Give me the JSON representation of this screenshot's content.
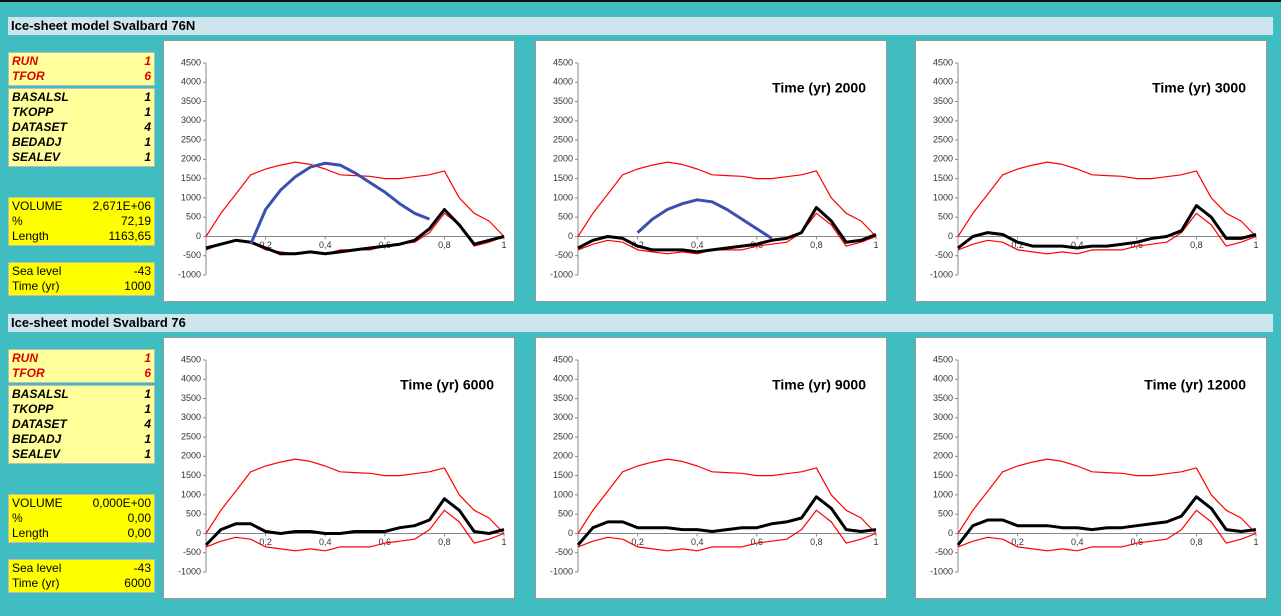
{
  "panels": [
    {
      "title": "Ice-sheet model Svalbard 76N",
      "groups": [
        [
          [
            "RUN",
            "1"
          ],
          [
            "TFOR",
            "6"
          ]
        ],
        [
          [
            "BASALSL",
            "1"
          ],
          [
            "TKOPP",
            "1"
          ],
          [
            "DATASET",
            "4"
          ],
          [
            "BEDADJ",
            "1"
          ],
          [
            "SEALEV",
            "1"
          ]
        ],
        [
          [
            "VOLUME",
            "2,671E+06"
          ],
          [
            "%",
            "72,19"
          ],
          [
            "Length",
            "1163,65"
          ]
        ],
        [
          [
            "Sea level",
            "-43"
          ],
          [
            "Time (yr)",
            "1000"
          ]
        ]
      ]
    },
    {
      "title": "Ice-sheet model Svalbard 76",
      "groups": [
        [
          [
            "RUN",
            "1"
          ],
          [
            "TFOR",
            "6"
          ]
        ],
        [
          [
            "BASALSL",
            "1"
          ],
          [
            "TKOPP",
            "1"
          ],
          [
            "DATASET",
            "4"
          ],
          [
            "BEDADJ",
            "1"
          ],
          [
            "SEALEV",
            "1"
          ]
        ],
        [
          [
            "VOLUME",
            "0,000E+00"
          ],
          [
            "%",
            "0,00"
          ],
          [
            "Length",
            "0,00"
          ]
        ],
        [
          [
            "Sea level",
            "-43"
          ],
          [
            "Time (yr)",
            "6000"
          ]
        ]
      ]
    }
  ],
  "chart_data": [
    {
      "type": "line",
      "xlim": [
        0,
        1
      ],
      "ylim": [
        -1000,
        4500
      ],
      "xticks": [
        {
          "value": 0.2,
          "label": "0,2"
        },
        {
          "value": 0.4,
          "label": "0,4"
        },
        {
          "value": 0.6,
          "label": "0,6"
        },
        {
          "value": 0.8,
          "label": "0,8"
        },
        1
      ],
      "yticks": [
        -1000,
        -500,
        0,
        500,
        1000,
        1500,
        2000,
        2500,
        3000,
        3500,
        4000,
        4500
      ],
      "x": [
        0,
        0.05,
        0.1,
        0.15,
        0.2,
        0.25,
        0.3,
        0.35,
        0.4,
        0.45,
        0.5,
        0.55,
        0.6,
        0.65,
        0.7,
        0.75,
        0.8,
        0.85,
        0.9,
        0.95,
        1
      ],
      "series": [
        {
          "color": "#ff0000",
          "values": [
            0,
            600,
            1100,
            1600,
            1750,
            1850,
            1930,
            1870,
            1750,
            1600,
            1580,
            1560,
            1500,
            1500,
            1550,
            1600,
            1700,
            1000,
            600,
            400,
            0
          ]
        },
        {
          "color": "#ff0000",
          "values": [
            -350,
            -200,
            -100,
            -150,
            -350,
            -400,
            -450,
            -400,
            -450,
            -350,
            -350,
            -350,
            -250,
            -200,
            -150,
            100,
            600,
            300,
            -250,
            -150,
            0
          ]
        },
        {
          "color": "#000000",
          "values": [
            -300,
            -200,
            -100,
            -150,
            -300,
            -450,
            -450,
            -400,
            -450,
            -400,
            -350,
            -300,
            -250,
            -200,
            -100,
            200,
            700,
            300,
            -200,
            -100,
            0
          ]
        },
        {
          "color": "#3a4fb0",
          "values": [
            null,
            null,
            null,
            -200,
            700,
            1200,
            1550,
            1800,
            1900,
            1850,
            1650,
            1400,
            1150,
            850,
            600,
            450,
            null,
            null,
            null,
            null,
            null
          ]
        }
      ]
    },
    {
      "type": "line",
      "xlim": [
        0,
        1
      ],
      "ylim": [
        -1000,
        4500
      ],
      "annotation": "Time (yr) 2000",
      "xticks": [
        {
          "value": 0.2,
          "label": "0,2"
        },
        {
          "value": 0.4,
          "label": "0,4"
        },
        {
          "value": 0.6,
          "label": "0,6"
        },
        {
          "value": 0.8,
          "label": "0,8"
        },
        1
      ],
      "yticks": [
        -1000,
        -500,
        0,
        500,
        1000,
        1500,
        2000,
        2500,
        3000,
        3500,
        4000,
        4500
      ],
      "x": [
        0,
        0.05,
        0.1,
        0.15,
        0.2,
        0.25,
        0.3,
        0.35,
        0.4,
        0.45,
        0.5,
        0.55,
        0.6,
        0.65,
        0.7,
        0.75,
        0.8,
        0.85,
        0.9,
        0.95,
        1
      ],
      "series": [
        {
          "color": "#ff0000",
          "values": [
            0,
            600,
            1100,
            1600,
            1750,
            1850,
            1930,
            1870,
            1750,
            1600,
            1580,
            1560,
            1500,
            1500,
            1550,
            1600,
            1700,
            1000,
            600,
            400,
            0
          ]
        },
        {
          "color": "#ff0000",
          "values": [
            -350,
            -200,
            -100,
            -150,
            -350,
            -400,
            -450,
            -400,
            -450,
            -350,
            -350,
            -350,
            -250,
            -200,
            -150,
            100,
            600,
            300,
            -250,
            -150,
            0
          ]
        },
        {
          "color": "#000000",
          "values": [
            -300,
            -100,
            0,
            -50,
            -250,
            -350,
            -350,
            -350,
            -400,
            -350,
            -300,
            -250,
            -200,
            -100,
            -50,
            100,
            750,
            400,
            -150,
            -100,
            50
          ]
        },
        {
          "color": "#3a4fb0",
          "values": [
            null,
            null,
            null,
            null,
            100,
            450,
            700,
            850,
            950,
            900,
            700,
            450,
            200,
            -50,
            null,
            null,
            null,
            null,
            null,
            null,
            null
          ]
        }
      ]
    },
    {
      "type": "line",
      "xlim": [
        0,
        1
      ],
      "ylim": [
        -1000,
        4500
      ],
      "annotation": "Time (yr) 3000",
      "xticks": [
        {
          "value": 0.2,
          "label": "0,2"
        },
        {
          "value": 0.4,
          "label": "0,4"
        },
        {
          "value": 0.6,
          "label": "0,6"
        },
        {
          "value": 0.8,
          "label": "0,8"
        },
        1
      ],
      "yticks": [
        -1000,
        -500,
        0,
        500,
        1000,
        1500,
        2000,
        2500,
        3000,
        3500,
        4000,
        4500
      ],
      "x": [
        0,
        0.05,
        0.1,
        0.15,
        0.2,
        0.25,
        0.3,
        0.35,
        0.4,
        0.45,
        0.5,
        0.55,
        0.6,
        0.65,
        0.7,
        0.75,
        0.8,
        0.85,
        0.9,
        0.95,
        1
      ],
      "series": [
        {
          "color": "#ff0000",
          "values": [
            0,
            600,
            1100,
            1600,
            1750,
            1850,
            1930,
            1870,
            1750,
            1600,
            1580,
            1560,
            1500,
            1500,
            1550,
            1600,
            1700,
            1000,
            600,
            400,
            0
          ]
        },
        {
          "color": "#ff0000",
          "values": [
            -350,
            -200,
            -100,
            -150,
            -350,
            -400,
            -450,
            -400,
            -450,
            -350,
            -350,
            -350,
            -250,
            -200,
            -150,
            100,
            600,
            300,
            -250,
            -150,
            0
          ]
        },
        {
          "color": "#000000",
          "values": [
            -300,
            0,
            100,
            50,
            -150,
            -250,
            -250,
            -250,
            -300,
            -250,
            -250,
            -200,
            -150,
            -50,
            0,
            150,
            800,
            500,
            -50,
            -50,
            50
          ]
        }
      ]
    },
    {
      "type": "line",
      "xlim": [
        0,
        1
      ],
      "ylim": [
        -1000,
        4500
      ],
      "annotation": "Time (yr) 6000",
      "xticks": [
        {
          "value": 0.2,
          "label": "0,2"
        },
        {
          "value": 0.4,
          "label": "0,4"
        },
        {
          "value": 0.6,
          "label": "0,6"
        },
        {
          "value": 0.8,
          "label": "0,8"
        },
        1
      ],
      "yticks": [
        -1000,
        -500,
        0,
        500,
        1000,
        1500,
        2000,
        2500,
        3000,
        3500,
        4000,
        4500
      ],
      "x": [
        0,
        0.05,
        0.1,
        0.15,
        0.2,
        0.25,
        0.3,
        0.35,
        0.4,
        0.45,
        0.5,
        0.55,
        0.6,
        0.65,
        0.7,
        0.75,
        0.8,
        0.85,
        0.9,
        0.95,
        1
      ],
      "series": [
        {
          "color": "#ff0000",
          "values": [
            0,
            600,
            1100,
            1600,
            1750,
            1850,
            1930,
            1870,
            1750,
            1600,
            1580,
            1560,
            1500,
            1500,
            1550,
            1600,
            1700,
            1000,
            600,
            400,
            0
          ]
        },
        {
          "color": "#ff0000",
          "values": [
            -350,
            -200,
            -100,
            -150,
            -350,
            -400,
            -450,
            -400,
            -450,
            -350,
            -350,
            -350,
            -250,
            -200,
            -150,
            100,
            600,
            300,
            -250,
            -150,
            0
          ]
        },
        {
          "color": "#000000",
          "values": [
            -300,
            100,
            250,
            250,
            50,
            0,
            50,
            50,
            0,
            0,
            50,
            50,
            50,
            150,
            200,
            350,
            900,
            600,
            50,
            0,
            100
          ]
        }
      ]
    },
    {
      "type": "line",
      "xlim": [
        0,
        1
      ],
      "ylim": [
        -1000,
        4500
      ],
      "annotation": "Time (yr) 9000",
      "xticks": [
        {
          "value": 0.2,
          "label": "0,2"
        },
        {
          "value": 0.4,
          "label": "0,4"
        },
        {
          "value": 0.6,
          "label": "0,6"
        },
        {
          "value": 0.8,
          "label": "0,8"
        },
        1
      ],
      "yticks": [
        -1000,
        -500,
        0,
        500,
        1000,
        1500,
        2000,
        2500,
        3000,
        3500,
        4000,
        4500
      ],
      "x": [
        0,
        0.05,
        0.1,
        0.15,
        0.2,
        0.25,
        0.3,
        0.35,
        0.4,
        0.45,
        0.5,
        0.55,
        0.6,
        0.65,
        0.7,
        0.75,
        0.8,
        0.85,
        0.9,
        0.95,
        1
      ],
      "series": [
        {
          "color": "#ff0000",
          "values": [
            0,
            600,
            1100,
            1600,
            1750,
            1850,
            1930,
            1870,
            1750,
            1600,
            1580,
            1560,
            1500,
            1500,
            1550,
            1600,
            1700,
            1000,
            600,
            400,
            0
          ]
        },
        {
          "color": "#ff0000",
          "values": [
            -350,
            -200,
            -100,
            -150,
            -350,
            -400,
            -450,
            -400,
            -450,
            -350,
            -350,
            -350,
            -250,
            -200,
            -150,
            100,
            600,
            300,
            -250,
            -150,
            0
          ]
        },
        {
          "color": "#000000",
          "values": [
            -300,
            150,
            300,
            300,
            150,
            150,
            150,
            100,
            100,
            50,
            100,
            150,
            150,
            250,
            300,
            400,
            950,
            650,
            100,
            50,
            100
          ]
        }
      ]
    },
    {
      "type": "line",
      "xlim": [
        0,
        1
      ],
      "ylim": [
        -1000,
        4500
      ],
      "annotation": "Time (yr) 12000",
      "xticks": [
        {
          "value": 0.2,
          "label": "0,2"
        },
        {
          "value": 0.4,
          "label": "0,4"
        },
        {
          "value": 0.6,
          "label": "0,6"
        },
        {
          "value": 0.8,
          "label": "0,8"
        },
        1
      ],
      "yticks": [
        -1000,
        -500,
        0,
        500,
        1000,
        1500,
        2000,
        2500,
        3000,
        3500,
        4000,
        4500
      ],
      "x": [
        0,
        0.05,
        0.1,
        0.15,
        0.2,
        0.25,
        0.3,
        0.35,
        0.4,
        0.45,
        0.5,
        0.55,
        0.6,
        0.65,
        0.7,
        0.75,
        0.8,
        0.85,
        0.9,
        0.95,
        1
      ],
      "series": [
        {
          "color": "#ff0000",
          "values": [
            0,
            600,
            1100,
            1600,
            1750,
            1850,
            1930,
            1870,
            1750,
            1600,
            1580,
            1560,
            1500,
            1500,
            1550,
            1600,
            1700,
            1000,
            600,
            400,
            0
          ]
        },
        {
          "color": "#ff0000",
          "values": [
            -350,
            -200,
            -100,
            -150,
            -350,
            -400,
            -450,
            -400,
            -450,
            -350,
            -350,
            -350,
            -250,
            -200,
            -150,
            100,
            600,
            300,
            -250,
            -150,
            0
          ]
        },
        {
          "color": "#000000",
          "values": [
            -300,
            200,
            350,
            350,
            200,
            200,
            200,
            150,
            150,
            100,
            150,
            150,
            200,
            250,
            300,
            450,
            950,
            650,
            100,
            50,
            100
          ]
        }
      ]
    }
  ]
}
